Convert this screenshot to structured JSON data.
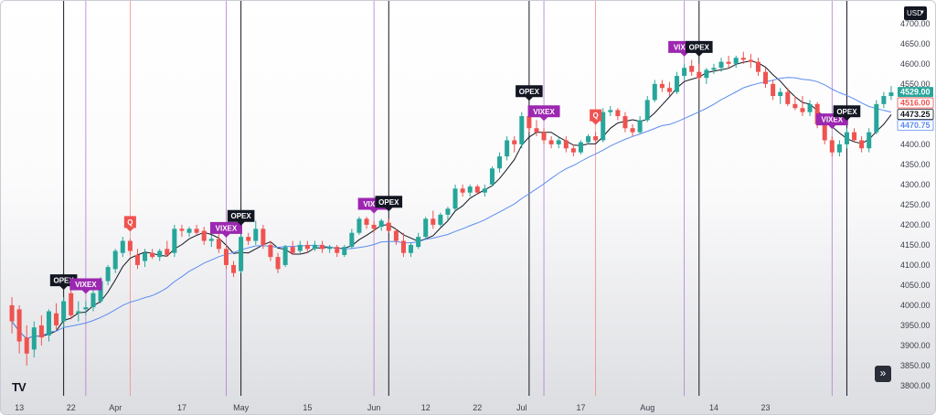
{
  "chart_data": {
    "type": "candlestick",
    "currency": "USD",
    "ylim": [
      3775,
      4745
    ],
    "y_ticks": [
      3800,
      3850,
      3900,
      3950,
      4000,
      4050,
      4100,
      4150,
      4200,
      4250,
      4300,
      4350,
      4400,
      4450,
      4500,
      4550,
      4600,
      4650,
      4700
    ],
    "x_ticks": [
      {
        "label": "13",
        "i": 1
      },
      {
        "label": "22",
        "i": 8
      },
      {
        "label": "Apr",
        "i": 14
      },
      {
        "label": "17",
        "i": 23
      },
      {
        "label": "May",
        "i": 31
      },
      {
        "label": "15",
        "i": 40
      },
      {
        "label": "Jun",
        "i": 49
      },
      {
        "label": "12",
        "i": 56
      },
      {
        "label": "22",
        "i": 63
      },
      {
        "label": "Jul",
        "i": 69
      },
      {
        "label": "17",
        "i": 77
      },
      {
        "label": "Aug",
        "i": 86
      },
      {
        "label": "14",
        "i": 95
      },
      {
        "label": "23",
        "i": 102
      }
    ],
    "candles": [
      {
        "o": 4000,
        "h": 4020,
        "l": 3930,
        "c": 3960
      },
      {
        "o": 3990,
        "h": 4000,
        "l": 3880,
        "c": 3910
      },
      {
        "o": 3920,
        "h": 3950,
        "l": 3850,
        "c": 3880
      },
      {
        "o": 3890,
        "h": 3960,
        "l": 3870,
        "c": 3945
      },
      {
        "o": 3950,
        "h": 3975,
        "l": 3900,
        "c": 3920
      },
      {
        "o": 3925,
        "h": 3990,
        "l": 3910,
        "c": 3985
      },
      {
        "o": 3980,
        "h": 4005,
        "l": 3940,
        "c": 3950
      },
      {
        "o": 3960,
        "h": 4020,
        "l": 3945,
        "c": 4010
      },
      {
        "o": 4030,
        "h": 4045,
        "l": 3965,
        "c": 3975
      },
      {
        "o": 3980,
        "h": 4010,
        "l": 3960,
        "c": 3985
      },
      {
        "o": 3990,
        "h": 4010,
        "l": 3975,
        "c": 3995
      },
      {
        "o": 3995,
        "h": 4040,
        "l": 3985,
        "c": 4030
      },
      {
        "o": 4010,
        "h": 4070,
        "l": 4005,
        "c": 4060
      },
      {
        "o": 4060,
        "h": 4100,
        "l": 4050,
        "c": 4095
      },
      {
        "o": 4090,
        "h": 4140,
        "l": 4080,
        "c": 4135
      },
      {
        "o": 4130,
        "h": 4170,
        "l": 4120,
        "c": 4160
      },
      {
        "o": 4160,
        "h": 4165,
        "l": 4125,
        "c": 4135
      },
      {
        "o": 4125,
        "h": 4140,
        "l": 4090,
        "c": 4100
      },
      {
        "o": 4110,
        "h": 4140,
        "l": 4095,
        "c": 4130
      },
      {
        "o": 4130,
        "h": 4140,
        "l": 4115,
        "c": 4120
      },
      {
        "o": 4120,
        "h": 4140,
        "l": 4110,
        "c": 4135
      },
      {
        "o": 4140,
        "h": 4160,
        "l": 4120,
        "c": 4125
      },
      {
        "o": 4130,
        "h": 4200,
        "l": 4120,
        "c": 4190
      },
      {
        "o": 4190,
        "h": 4200,
        "l": 4170,
        "c": 4185
      },
      {
        "o": 4180,
        "h": 4195,
        "l": 4170,
        "c": 4190
      },
      {
        "o": 4190,
        "h": 4200,
        "l": 4175,
        "c": 4180
      },
      {
        "o": 4185,
        "h": 4195,
        "l": 4150,
        "c": 4160
      },
      {
        "o": 4160,
        "h": 4175,
        "l": 4145,
        "c": 4165
      },
      {
        "o": 4165,
        "h": 4180,
        "l": 4130,
        "c": 4140
      },
      {
        "o": 4140,
        "h": 4150,
        "l": 4090,
        "c": 4100
      },
      {
        "o": 4100,
        "h": 4110,
        "l": 4070,
        "c": 4080
      },
      {
        "o": 4085,
        "h": 4180,
        "l": 4080,
        "c": 4170
      },
      {
        "o": 4170,
        "h": 4180,
        "l": 4150,
        "c": 4160
      },
      {
        "o": 4160,
        "h": 4210,
        "l": 4150,
        "c": 4190
      },
      {
        "o": 4190,
        "h": 4200,
        "l": 4140,
        "c": 4150
      },
      {
        "o": 4150,
        "h": 4160,
        "l": 4110,
        "c": 4120
      },
      {
        "o": 4120,
        "h": 4130,
        "l": 4080,
        "c": 4090
      },
      {
        "o": 4100,
        "h": 4150,
        "l": 4095,
        "c": 4145
      },
      {
        "o": 4145,
        "h": 4160,
        "l": 4125,
        "c": 4130
      },
      {
        "o": 4135,
        "h": 4160,
        "l": 4130,
        "c": 4150
      },
      {
        "o": 4150,
        "h": 4160,
        "l": 4130,
        "c": 4140
      },
      {
        "o": 4140,
        "h": 4160,
        "l": 4135,
        "c": 4150
      },
      {
        "o": 4150,
        "h": 4160,
        "l": 4130,
        "c": 4140
      },
      {
        "o": 4140,
        "h": 4150,
        "l": 4130,
        "c": 4145
      },
      {
        "o": 4145,
        "h": 4150,
        "l": 4120,
        "c": 4130
      },
      {
        "o": 4125,
        "h": 4150,
        "l": 4120,
        "c": 4145
      },
      {
        "o": 4145,
        "h": 4190,
        "l": 4140,
        "c": 4180
      },
      {
        "o": 4180,
        "h": 4220,
        "l": 4175,
        "c": 4215
      },
      {
        "o": 4215,
        "h": 4220,
        "l": 4190,
        "c": 4200
      },
      {
        "o": 4200,
        "h": 4210,
        "l": 4180,
        "c": 4190
      },
      {
        "o": 4195,
        "h": 4215,
        "l": 4185,
        "c": 4210
      },
      {
        "o": 4205,
        "h": 4215,
        "l": 4180,
        "c": 4185
      },
      {
        "o": 4185,
        "h": 4190,
        "l": 4150,
        "c": 4160
      },
      {
        "o": 4160,
        "h": 4180,
        "l": 4120,
        "c": 4130
      },
      {
        "o": 4130,
        "h": 4155,
        "l": 4120,
        "c": 4150
      },
      {
        "o": 4145,
        "h": 4180,
        "l": 4140,
        "c": 4170
      },
      {
        "o": 4170,
        "h": 4220,
        "l": 4165,
        "c": 4215
      },
      {
        "o": 4215,
        "h": 4235,
        "l": 4190,
        "c": 4200
      },
      {
        "o": 4200,
        "h": 4230,
        "l": 4195,
        "c": 4225
      },
      {
        "o": 4225,
        "h": 4245,
        "l": 4210,
        "c": 4240
      },
      {
        "o": 4240,
        "h": 4300,
        "l": 4235,
        "c": 4290
      },
      {
        "o": 4290,
        "h": 4300,
        "l": 4270,
        "c": 4280
      },
      {
        "o": 4280,
        "h": 4300,
        "l": 4270,
        "c": 4295
      },
      {
        "o": 4295,
        "h": 4300,
        "l": 4275,
        "c": 4280
      },
      {
        "o": 4280,
        "h": 4300,
        "l": 4270,
        "c": 4290
      },
      {
        "o": 4300,
        "h": 4345,
        "l": 4295,
        "c": 4340
      },
      {
        "o": 4340,
        "h": 4380,
        "l": 4330,
        "c": 4370
      },
      {
        "o": 4370,
        "h": 4420,
        "l": 4360,
        "c": 4410
      },
      {
        "o": 4410,
        "h": 4420,
        "l": 4380,
        "c": 4400
      },
      {
        "o": 4400,
        "h": 4480,
        "l": 4390,
        "c": 4470
      },
      {
        "o": 4470,
        "h": 4490,
        "l": 4430,
        "c": 4440
      },
      {
        "o": 4440,
        "h": 4460,
        "l": 4420,
        "c": 4430
      },
      {
        "o": 4430,
        "h": 4440,
        "l": 4400,
        "c": 4410
      },
      {
        "o": 4410,
        "h": 4420,
        "l": 4390,
        "c": 4400
      },
      {
        "o": 4400,
        "h": 4420,
        "l": 4390,
        "c": 4410
      },
      {
        "o": 4410,
        "h": 4420,
        "l": 4380,
        "c": 4390
      },
      {
        "o": 4390,
        "h": 4400,
        "l": 4370,
        "c": 4380
      },
      {
        "o": 4380,
        "h": 4410,
        "l": 4375,
        "c": 4405
      },
      {
        "o": 4405,
        "h": 4425,
        "l": 4400,
        "c": 4420
      },
      {
        "o": 4420,
        "h": 4430,
        "l": 4405,
        "c": 4410
      },
      {
        "o": 4410,
        "h": 4490,
        "l": 4405,
        "c": 4480
      },
      {
        "o": 4480,
        "h": 4495,
        "l": 4470,
        "c": 4485
      },
      {
        "o": 4485,
        "h": 4490,
        "l": 4460,
        "c": 4470
      },
      {
        "o": 4470,
        "h": 4480,
        "l": 4430,
        "c": 4440
      },
      {
        "o": 4440,
        "h": 4450,
        "l": 4420,
        "c": 4430
      },
      {
        "o": 4430,
        "h": 4470,
        "l": 4425,
        "c": 4460
      },
      {
        "o": 4460,
        "h": 4520,
        "l": 4455,
        "c": 4510
      },
      {
        "o": 4510,
        "h": 4560,
        "l": 4505,
        "c": 4550
      },
      {
        "o": 4550,
        "h": 4560,
        "l": 4530,
        "c": 4540
      },
      {
        "o": 4540,
        "h": 4555,
        "l": 4520,
        "c": 4530
      },
      {
        "o": 4530,
        "h": 4580,
        "l": 4525,
        "c": 4570
      },
      {
        "o": 4570,
        "h": 4600,
        "l": 4560,
        "c": 4590
      },
      {
        "o": 4595,
        "h": 4610,
        "l": 4570,
        "c": 4580
      },
      {
        "o": 4580,
        "h": 4600,
        "l": 4560,
        "c": 4565
      },
      {
        "o": 4565,
        "h": 4590,
        "l": 4550,
        "c": 4585
      },
      {
        "o": 4585,
        "h": 4600,
        "l": 4575,
        "c": 4590
      },
      {
        "o": 4590,
        "h": 4615,
        "l": 4580,
        "c": 4605
      },
      {
        "o": 4605,
        "h": 4620,
        "l": 4590,
        "c": 4600
      },
      {
        "o": 4600,
        "h": 4620,
        "l": 4590,
        "c": 4615
      },
      {
        "o": 4615,
        "h": 4630,
        "l": 4600,
        "c": 4610
      },
      {
        "o": 4610,
        "h": 4625,
        "l": 4590,
        "c": 4605
      },
      {
        "o": 4605,
        "h": 4615,
        "l": 4570,
        "c": 4580
      },
      {
        "o": 4580,
        "h": 4590,
        "l": 4540,
        "c": 4550
      },
      {
        "o": 4550,
        "h": 4560,
        "l": 4510,
        "c": 4520
      },
      {
        "o": 4520,
        "h": 4540,
        "l": 4500,
        "c": 4530
      },
      {
        "o": 4530,
        "h": 4540,
        "l": 4495,
        "c": 4500
      },
      {
        "o": 4500,
        "h": 4520,
        "l": 4485,
        "c": 4490
      },
      {
        "o": 4490,
        "h": 4520,
        "l": 4470,
        "c": 4480
      },
      {
        "o": 4480,
        "h": 4510,
        "l": 4470,
        "c": 4500
      },
      {
        "o": 4500,
        "h": 4505,
        "l": 4440,
        "c": 4450
      },
      {
        "o": 4450,
        "h": 4460,
        "l": 4400,
        "c": 4410
      },
      {
        "o": 4410,
        "h": 4420,
        "l": 4370,
        "c": 4380
      },
      {
        "o": 4380,
        "h": 4410,
        "l": 4370,
        "c": 4400
      },
      {
        "o": 4400,
        "h": 4440,
        "l": 4390,
        "c": 4430
      },
      {
        "o": 4430,
        "h": 4440,
        "l": 4405,
        "c": 4410
      },
      {
        "o": 4410,
        "h": 4420,
        "l": 4380,
        "c": 4390
      },
      {
        "o": 4390,
        "h": 4440,
        "l": 4380,
        "c": 4430
      },
      {
        "o": 4430,
        "h": 4510,
        "l": 4425,
        "c": 4500
      },
      {
        "o": 4500,
        "h": 4530,
        "l": 4490,
        "c": 4520
      },
      {
        "o": 4520,
        "h": 4545,
        "l": 4510,
        "c": 4529
      }
    ],
    "events": [
      {
        "i": 7,
        "label": "OPEX",
        "kind": "opex"
      },
      {
        "i": 10,
        "label": "VIXEX",
        "kind": "vixex"
      },
      {
        "i": 16,
        "label": "Q",
        "kind": "q"
      },
      {
        "i": 29,
        "label": "VIXEX",
        "kind": "vixex"
      },
      {
        "i": 31,
        "label": "OPEX",
        "kind": "opex"
      },
      {
        "i": 49,
        "label": "VIXEX",
        "kind": "vixex"
      },
      {
        "i": 51,
        "label": "OPEX",
        "kind": "opex"
      },
      {
        "i": 70,
        "label": "OPEX",
        "kind": "opex"
      },
      {
        "i": 72,
        "label": "VIXEX",
        "kind": "vixex"
      },
      {
        "i": 79,
        "label": "Q",
        "kind": "q"
      },
      {
        "i": 91,
        "label": "VIXEX",
        "kind": "vixex"
      },
      {
        "i": 93,
        "label": "OPEX",
        "kind": "opex"
      },
      {
        "i": 111,
        "label": "VIXEX",
        "kind": "vixex"
      },
      {
        "i": 113,
        "label": "OPEX",
        "kind": "opex"
      }
    ],
    "price_labels": [
      {
        "value": 4529.0,
        "text": "4529.00",
        "style": "green"
      },
      {
        "value": 4516.0,
        "text": "4516.00",
        "style": "red"
      },
      {
        "value": 4473.25,
        "text": "4473.25",
        "style": "black"
      },
      {
        "value": 4470.75,
        "text": "4470.75",
        "style": "blue"
      }
    ],
    "moving_averages": [
      {
        "color": "#131722",
        "period": 5
      },
      {
        "color": "#5b8def",
        "period": 20
      }
    ],
    "colors": {
      "up": "#26a69a",
      "down": "#ef5350",
      "opex": "#131722",
      "vixex": "#9c27b0",
      "q": "#ef5350",
      "opex_line": "#131722",
      "vixex_line": "#b57ad1",
      "q_line": "#f28b82"
    }
  }
}
